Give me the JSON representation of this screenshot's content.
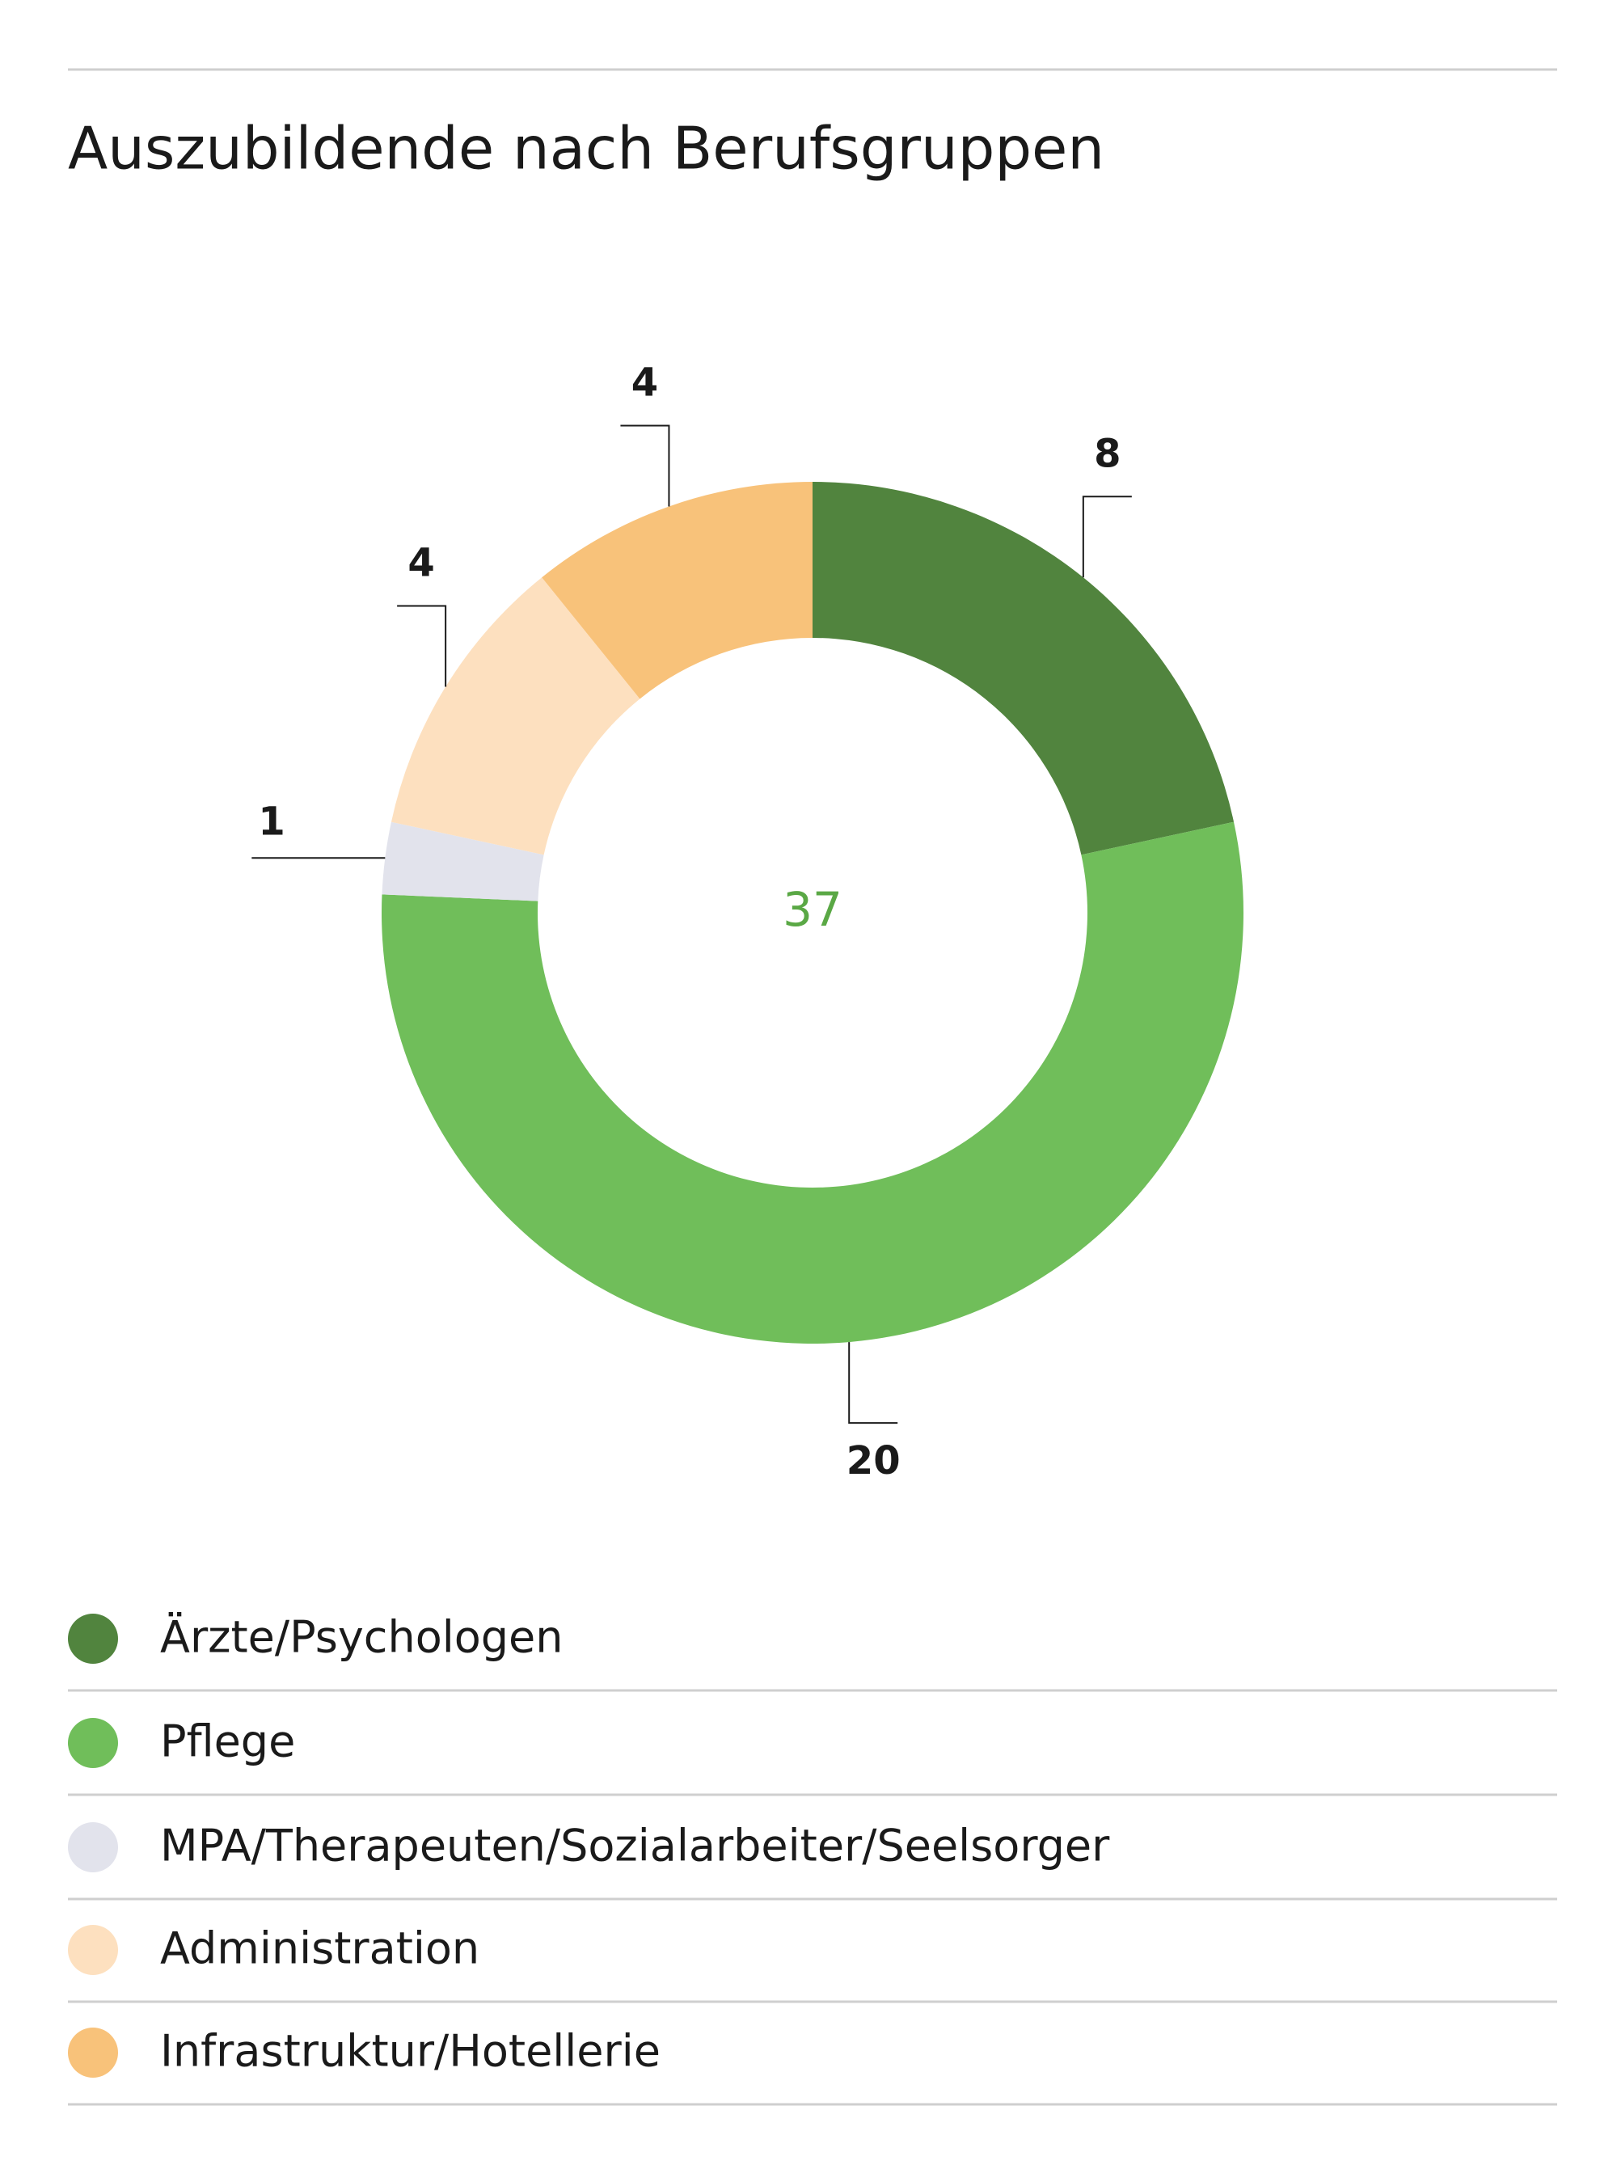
{
  "chart_data": {
    "type": "donut",
    "title": "Auszubildende nach Berufsgruppen",
    "categories": [
      "Ärzte/Psychologen",
      "Pflege",
      "MPA/Therapeuten/Sozialarbeiter/Seelsorger",
      "Administration",
      "Infrastruktur/Hotellerie"
    ],
    "values": [
      8,
      20,
      1,
      4,
      4
    ],
    "colors": [
      "#51843e",
      "#70be5a",
      "#e2e3ec",
      "#fde0bf",
      "#f8c27a"
    ],
    "total": 37
  }
}
